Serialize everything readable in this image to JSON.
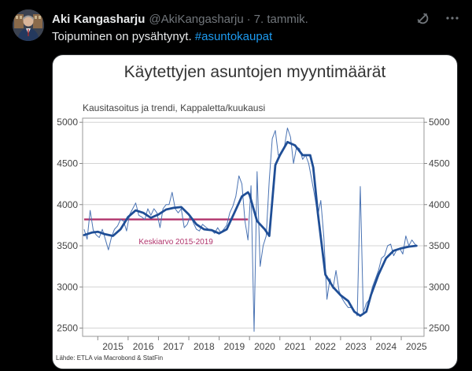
{
  "tweet": {
    "author_name": "Aki Kangasharju",
    "handle": "@AkiKangasharju",
    "separator": "·",
    "date": "7. tammik.",
    "text_plain": "Toipuminen on pysähtynyt. ",
    "hashtag": "#asuntokaupat"
  },
  "icons": {
    "avatar": "avatar",
    "grok": "grok-icon",
    "more": "more-icon"
  },
  "colors": {
    "background": "#000000",
    "text": "#e7e9ea",
    "muted": "#71767b",
    "accent": "#1d9bf0",
    "series_trend": "#1f4e96",
    "series_raw": "#4a73b3",
    "average_line": "#b0336b"
  },
  "chart_data": {
    "type": "line",
    "title": "Käytettyjen asuntojen myyntimäärät",
    "subtitle": "Kausitasoitus ja trendi, Kappaletta/kuukausi",
    "source": "Lähde: ETLA via Macrobond & StatFin",
    "ylim": [
      2400,
      5050
    ],
    "yticks": [
      2500,
      3000,
      3500,
      4000,
      4500,
      5000
    ],
    "xlim": [
      2014.5,
      2025.75
    ],
    "xticks": [
      "2015",
      "2016",
      "2017",
      "2018",
      "2019",
      "2020",
      "2021",
      "2022",
      "2023",
      "2024",
      "2025"
    ],
    "grid": true,
    "annotation": {
      "label": "Keskiarvo 2015-2019",
      "value": 3820,
      "x_start": 2014.55,
      "x_end": 2019.95
    },
    "series": [
      {
        "role": "trend",
        "x": [
          2014.55,
          2014.8,
          2015.0,
          2015.25,
          2015.5,
          2015.75,
          2016.0,
          2016.25,
          2016.5,
          2016.75,
          2017.0,
          2017.25,
          2017.5,
          2017.75,
          2018.0,
          2018.25,
          2018.5,
          2018.75,
          2019.0,
          2019.25,
          2019.5,
          2019.75,
          2019.95,
          2020.0,
          2020.25,
          2020.5,
          2020.65,
          2020.85,
          2021.0,
          2021.25,
          2021.5,
          2021.75,
          2022.0,
          2022.1,
          2022.17,
          2022.25,
          2022.5,
          2022.75,
          2023.0,
          2023.25,
          2023.45,
          2023.65,
          2023.85,
          2024.0,
          2024.25,
          2024.5,
          2024.75,
          2025.0,
          2025.25,
          2025.5
        ],
        "values": [
          3630,
          3660,
          3670,
          3640,
          3620,
          3700,
          3850,
          3930,
          3900,
          3840,
          3880,
          3940,
          3960,
          3970,
          3880,
          3760,
          3700,
          3690,
          3650,
          3700,
          3900,
          4100,
          4150,
          4120,
          3800,
          3700,
          3620,
          4480,
          4600,
          4760,
          4720,
          4600,
          4600,
          4450,
          4200,
          3900,
          3150,
          3000,
          2900,
          2830,
          2700,
          2650,
          2700,
          2900,
          3150,
          3350,
          3440,
          3470,
          3490,
          3500
        ]
      },
      {
        "role": "raw",
        "x": [
          2014.55,
          2014.65,
          2014.75,
          2014.85,
          2014.95,
          2015.05,
          2015.15,
          2015.25,
          2015.35,
          2015.45,
          2015.55,
          2015.65,
          2015.75,
          2015.85,
          2015.95,
          2016.05,
          2016.15,
          2016.25,
          2016.35,
          2016.45,
          2016.55,
          2016.65,
          2016.75,
          2016.85,
          2016.95,
          2017.05,
          2017.15,
          2017.25,
          2017.35,
          2017.45,
          2017.55,
          2017.65,
          2017.75,
          2017.85,
          2017.95,
          2018.05,
          2018.15,
          2018.25,
          2018.35,
          2018.45,
          2018.55,
          2018.65,
          2018.75,
          2018.85,
          2018.95,
          2019.05,
          2019.15,
          2019.25,
          2019.35,
          2019.45,
          2019.55,
          2019.65,
          2019.75,
          2019.85,
          2019.95,
          2020.05,
          2020.15,
          2020.25,
          2020.35,
          2020.45,
          2020.55,
          2020.65,
          2020.75,
          2020.85,
          2020.95,
          2021.05,
          2021.15,
          2021.25,
          2021.35,
          2021.45,
          2021.55,
          2021.65,
          2021.75,
          2021.85,
          2021.95,
          2022.05,
          2022.15,
          2022.25,
          2022.35,
          2022.45,
          2022.55,
          2022.65,
          2022.75,
          2022.85,
          2022.95,
          2023.05,
          2023.15,
          2023.25,
          2023.35,
          2023.45,
          2023.55,
          2023.65,
          2023.75,
          2023.85,
          2023.95,
          2024.05,
          2024.15,
          2024.25,
          2024.35,
          2024.45,
          2024.55,
          2024.65,
          2024.75,
          2024.85,
          2024.95,
          2025.05,
          2025.15,
          2025.25,
          2025.35,
          2025.45,
          2025.5
        ],
        "values": [
          3700,
          3580,
          3930,
          3690,
          3630,
          3600,
          3700,
          3580,
          3450,
          3600,
          3700,
          3740,
          3820,
          3800,
          3680,
          3880,
          3950,
          4020,
          3870,
          3850,
          3820,
          3950,
          3870,
          3950,
          3900,
          3720,
          3950,
          4000,
          4000,
          4150,
          3950,
          3900,
          3950,
          3720,
          3760,
          3870,
          3780,
          3700,
          3680,
          3760,
          3730,
          3700,
          3690,
          3650,
          3720,
          3660,
          3700,
          3750,
          3900,
          3980,
          4100,
          4350,
          4250,
          3800,
          3570,
          4230,
          2460,
          4400,
          3250,
          3500,
          3620,
          4300,
          4800,
          4900,
          4600,
          4620,
          4700,
          4930,
          4820,
          4500,
          4700,
          4680,
          4550,
          4600,
          4500,
          4300,
          4100,
          3870,
          4050,
          3600,
          2850,
          3100,
          2980,
          3200,
          2950,
          2860,
          2800,
          2750,
          2750,
          2720,
          2650,
          4220,
          2690,
          2800,
          2850,
          3000,
          3100,
          3200,
          3350,
          3380,
          3500,
          3520,
          3380,
          3450,
          3470,
          3400,
          3620,
          3500,
          3570,
          3520,
          3500
        ]
      }
    ]
  }
}
